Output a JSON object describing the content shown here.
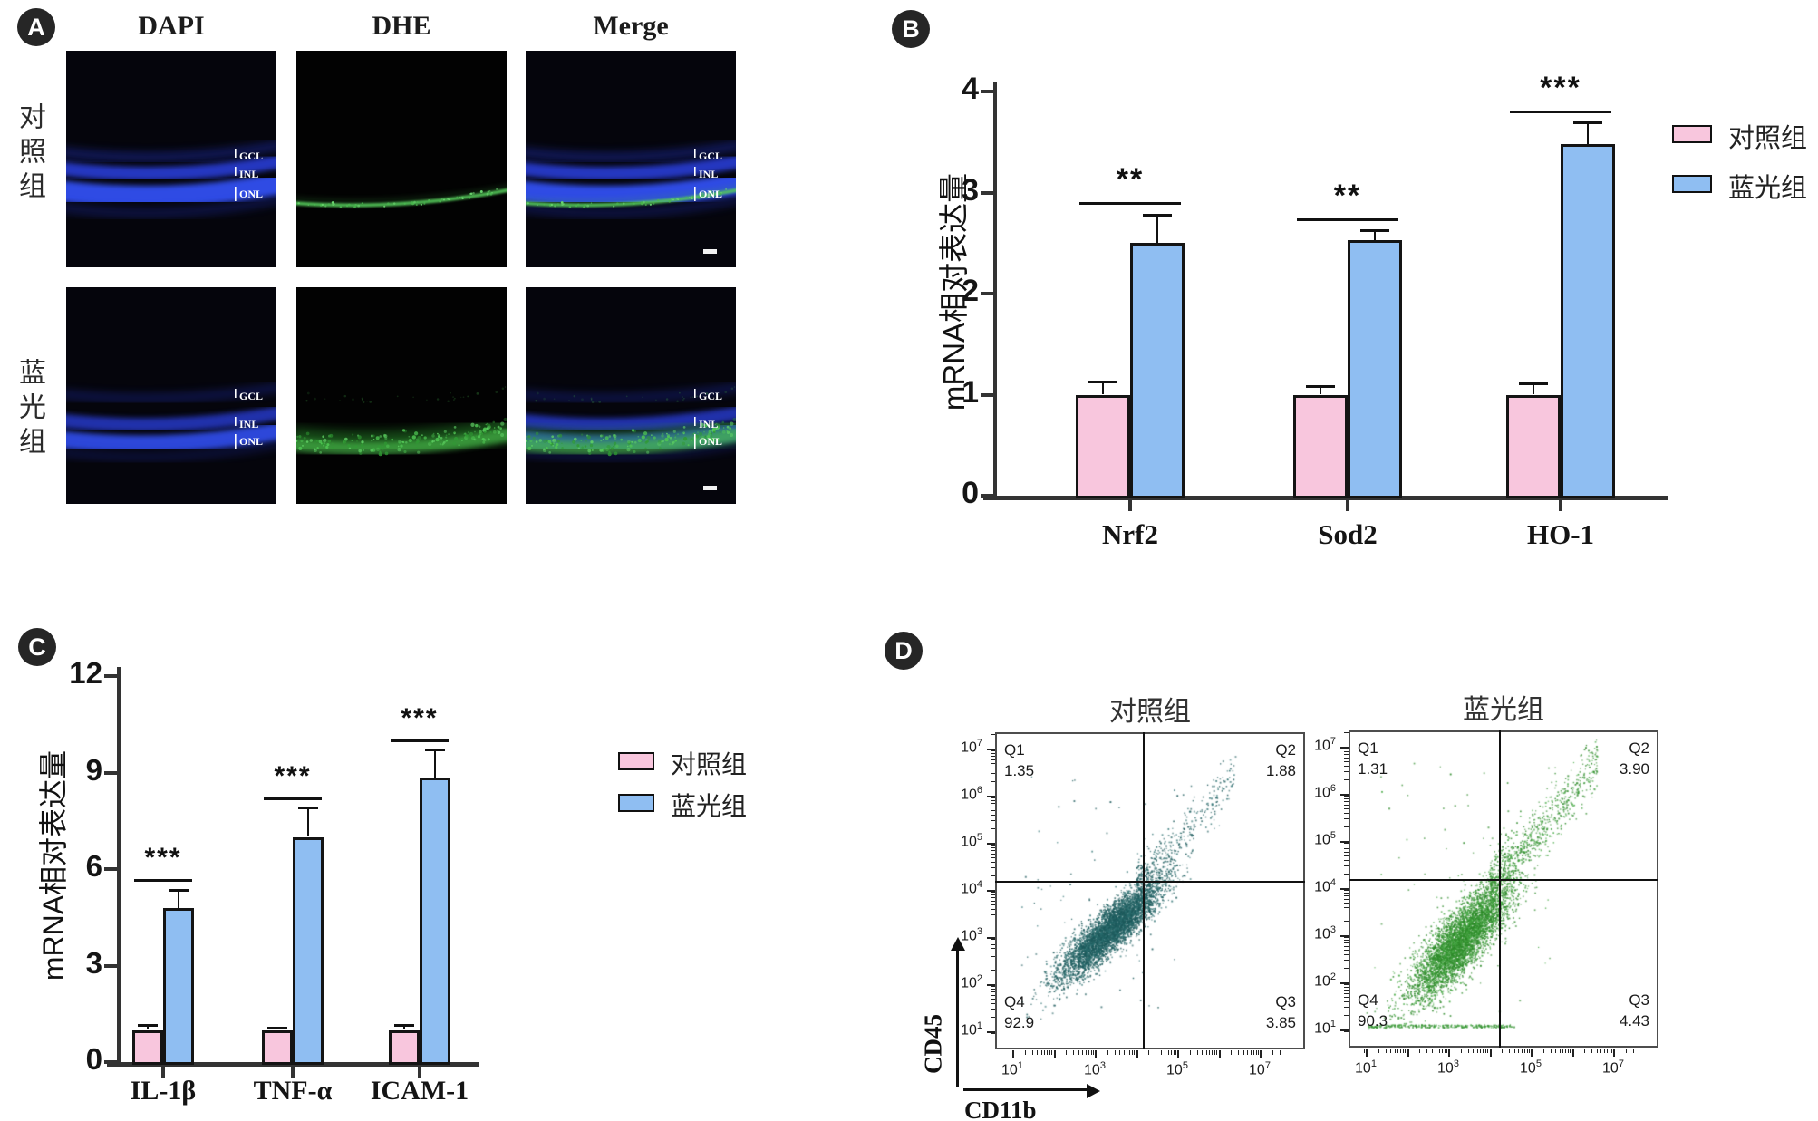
{
  "panels": {
    "A": {
      "badge": "A",
      "col_headers": [
        "DAPI",
        "DHE",
        "Merge"
      ],
      "rows": [
        {
          "label": "对照组",
          "variant": "control",
          "layer_labels": [
            "GCL",
            "INL",
            "ONL"
          ]
        },
        {
          "label": "蓝光组",
          "variant": "blue",
          "layer_labels": [
            "GCL",
            "INL",
            "ONL"
          ]
        }
      ]
    },
    "B": {
      "badge": "B"
    },
    "C": {
      "badge": "C"
    },
    "D": {
      "badge": "D",
      "xlabel": "CD11b",
      "ylabel": "CD45",
      "plot_titles": [
        "对照组",
        "蓝光组"
      ]
    }
  },
  "chart_data": [
    {
      "id": "B",
      "type": "bar",
      "ylabel": "mRNA相对表达量",
      "categories": [
        "Nrf2",
        "Sod2",
        "HO-1"
      ],
      "series": [
        {
          "name": "对照组",
          "color": "#F8C6DD",
          "values": [
            1.0,
            1.0,
            1.0
          ],
          "errors": [
            0.13,
            0.08,
            0.11
          ]
        },
        {
          "name": "蓝光组",
          "color": "#8FBEF2",
          "values": [
            2.5,
            2.53,
            3.48
          ],
          "errors": [
            0.28,
            0.09,
            0.21
          ]
        }
      ],
      "significance": [
        "**",
        "**",
        "***"
      ],
      "ylim": [
        0,
        4
      ],
      "yticks": [
        0,
        1,
        2,
        3,
        4
      ],
      "grid": false,
      "legend_position": "right"
    },
    {
      "id": "C",
      "type": "bar",
      "ylabel": "mRNA相对表达量",
      "categories": [
        "IL-1β",
        "TNF-α",
        "ICAM-1"
      ],
      "series": [
        {
          "name": "对照组",
          "color": "#F8C6DD",
          "values": [
            1.0,
            1.0,
            1.0
          ],
          "errors": [
            0.15,
            0.07,
            0.15
          ]
        },
        {
          "name": "蓝光组",
          "color": "#8FBEF2",
          "values": [
            4.8,
            7.0,
            8.85
          ],
          "errors": [
            0.55,
            0.9,
            0.85
          ]
        }
      ],
      "significance": [
        "***",
        "***",
        "***"
      ],
      "ylim": [
        0,
        12
      ],
      "yticks": [
        0,
        3,
        6,
        9,
        12
      ],
      "grid": false,
      "legend_position": "right"
    },
    {
      "id": "D-control",
      "type": "scatter",
      "title": "对照组",
      "xlabel": "CD11b",
      "ylabel": "CD45",
      "x_axis": {
        "scale": "log10",
        "min_exp": 1,
        "max_exp": 7,
        "labeled_exps": [
          1,
          3,
          5,
          7
        ]
      },
      "y_axis": {
        "scale": "log10",
        "min_exp": 1,
        "max_exp": 7,
        "labeled_exps": [
          1,
          2,
          3,
          4,
          5,
          6,
          7
        ]
      },
      "gate_x_exp": 4.19,
      "gate_y_exp": 4.17,
      "dot_colors": [
        "#1d5a5c",
        "#2a6f70"
      ],
      "quadrants": [
        {
          "label": "Q1",
          "value": "1.35",
          "corner": "top-left"
        },
        {
          "label": "Q2",
          "value": "1.88",
          "corner": "top-right"
        },
        {
          "label": "Q3",
          "value": "3.85",
          "corner": "bottom-right"
        },
        {
          "label": "Q4",
          "value": "92.9",
          "corner": "bottom-left"
        }
      ],
      "clusters": [
        {
          "type": "gauss",
          "n": 4800,
          "cx": 3.35,
          "cy": 3.15,
          "sx": 0.62,
          "sy": 0.52,
          "rho": 0.88
        },
        {
          "type": "tail",
          "n": 420,
          "x0": 4.0,
          "x1": 6.4,
          "spread": 0.28,
          "bias": 1.7
        },
        {
          "type": "uniform",
          "n": 70,
          "x0": 1.2,
          "x1": 5.2,
          "y0": 1.3,
          "y1": 6.5
        }
      ],
      "seed": 42
    },
    {
      "id": "D-bluelight",
      "type": "scatter",
      "title": "蓝光组",
      "xlabel": "CD11b",
      "ylabel": "CD45",
      "x_axis": {
        "scale": "log10",
        "min_exp": 1,
        "max_exp": 7,
        "labeled_exps": [
          1,
          3,
          5,
          7
        ]
      },
      "y_axis": {
        "scale": "log10",
        "min_exp": 1,
        "max_exp": 7,
        "labeled_exps": [
          1,
          2,
          3,
          4,
          5,
          6,
          7
        ]
      },
      "gate_x_exp": 4.25,
      "gate_y_exp": 4.17,
      "dot_colors": [
        "#2e8b2a",
        "#46a944"
      ],
      "quadrants": [
        {
          "label": "Q1",
          "value": "1.31",
          "corner": "top-left"
        },
        {
          "label": "Q2",
          "value": "3.90",
          "corner": "top-right"
        },
        {
          "label": "Q3",
          "value": "4.43",
          "corner": "bottom-right"
        },
        {
          "label": "Q4",
          "value": "90.3",
          "corner": "bottom-left"
        }
      ],
      "clusters": [
        {
          "type": "gauss",
          "n": 4800,
          "cx": 3.3,
          "cy": 2.9,
          "sx": 0.6,
          "sy": 0.62,
          "rho": 0.82
        },
        {
          "type": "tail",
          "n": 780,
          "x0": 4.0,
          "x1": 6.6,
          "spread": 0.3,
          "bias": 1.5
        },
        {
          "type": "strip",
          "n": 240,
          "x0": 1.05,
          "x1": 4.6,
          "y": 1.05,
          "jitter": 0.06
        },
        {
          "type": "uniform",
          "n": 80,
          "x0": 1.2,
          "x1": 5.5,
          "y0": 1.3,
          "y1": 6.8
        }
      ],
      "seed": 77
    }
  ]
}
